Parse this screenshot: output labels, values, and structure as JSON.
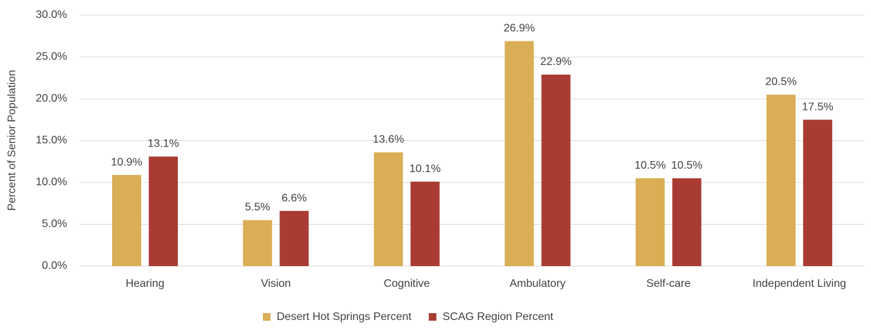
{
  "chart_data": {
    "type": "bar",
    "y_label": "Percent of Senior Population",
    "categories": [
      "Hearing",
      "Vision",
      "Cognitive",
      "Ambulatory",
      "Self-care",
      "Independent Living"
    ],
    "series": [
      {
        "name": "Desert Hot Springs Percent",
        "color": "#d9ae55",
        "values": [
          10.9,
          5.5,
          13.6,
          26.9,
          10.5,
          20.5
        ],
        "value_labels": [
          "10.9%",
          "5.5%",
          "13.6%",
          "26.9%",
          "10.5%",
          "20.5%"
        ]
      },
      {
        "name": "SCAG Region Percent",
        "color": "#a93c32",
        "values": [
          13.1,
          6.6,
          10.1,
          22.9,
          10.5,
          17.5
        ],
        "value_labels": [
          "13.1%",
          "6.6%",
          "10.1%",
          "22.9%",
          "10.5%",
          "17.5%"
        ]
      }
    ],
    "ylim": [
      0,
      30
    ],
    "yticks": [
      {
        "value": 0,
        "label": "0.0%"
      },
      {
        "value": 5,
        "label": "5.0%"
      },
      {
        "value": 10,
        "label": "10.0%"
      },
      {
        "value": 15,
        "label": "15.0%"
      },
      {
        "value": 20,
        "label": "20.0%"
      },
      {
        "value": 25,
        "label": "25.0%"
      },
      {
        "value": 30,
        "label": "30.0%"
      }
    ],
    "grid": true
  }
}
